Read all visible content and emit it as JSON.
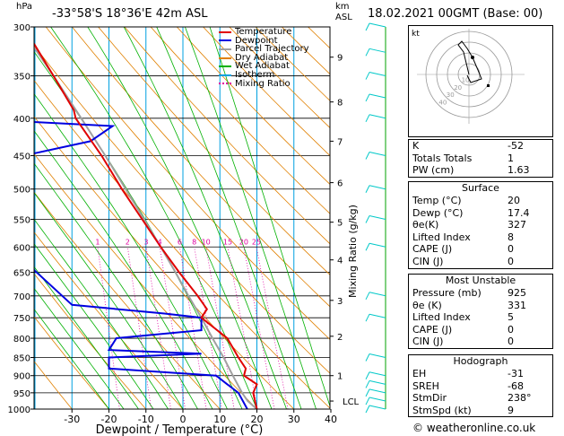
{
  "header": {
    "location": "-33°58'S  18°36'E  42m  ASL",
    "datetime": "18.02.2021  00GMT  (Base: 00)",
    "hpa_label": "hPa",
    "km_label": "km",
    "asl_label": "ASL"
  },
  "colors": {
    "temperature": "#e00000",
    "dewpoint": "#0000e0",
    "parcel": "#a0a0a0",
    "dry_adiabat": "#e08000",
    "wet_adiabat": "#00b000",
    "isotherm": "#00a0e0",
    "mixing_ratio": "#e000a0",
    "wind": "#00c8c8"
  },
  "legend": [
    {
      "label": "Temperature",
      "color": "#e00000",
      "style": "solid"
    },
    {
      "label": "Dewpoint",
      "color": "#0000e0",
      "style": "solid"
    },
    {
      "label": "Parcel Trajectory",
      "color": "#a0a0a0",
      "style": "solid"
    },
    {
      "label": "Dry Adiabat",
      "color": "#e08000",
      "style": "solid"
    },
    {
      "label": "Wet Adiabat",
      "color": "#00b000",
      "style": "solid"
    },
    {
      "label": "Isotherm",
      "color": "#00a0e0",
      "style": "solid"
    },
    {
      "label": "Mixing Ratio",
      "color": "#e000a0",
      "style": "dotted"
    }
  ],
  "chart_data": {
    "type": "skew-t",
    "xlabel": "Dewpoint / Temperature (°C)",
    "ylabel_right": "Mixing Ratio (g/kg)",
    "x_ticks": [
      -30,
      -20,
      -10,
      0,
      10,
      20,
      30,
      40
    ],
    "xlim": [
      -40,
      40
    ],
    "pressure_levels": [
      300,
      350,
      400,
      450,
      500,
      550,
      600,
      650,
      700,
      750,
      800,
      850,
      900,
      950,
      1000
    ],
    "pressure_labels": [
      "300",
      "350",
      "400",
      "450",
      "500",
      "550",
      "600",
      "650",
      "700",
      "750",
      "800",
      "850",
      "900",
      "950",
      "1000"
    ],
    "km_ticks": [
      {
        "km": "1",
        "p": 900
      },
      {
        "km": "2",
        "p": 795
      },
      {
        "km": "3",
        "p": 710
      },
      {
        "km": "4",
        "p": 625
      },
      {
        "km": "5",
        "p": 555
      },
      {
        "km": "6",
        "p": 490
      },
      {
        "km": "7",
        "p": 430
      },
      {
        "km": "8",
        "p": 380
      },
      {
        "km": "9",
        "p": 330
      },
      {
        "km": "LCL",
        "p": 975
      }
    ],
    "mixing_ratio_labels": [
      "1",
      "2",
      "3",
      "4",
      "6",
      "8",
      "10",
      "15",
      "20",
      "25"
    ],
    "mixing_ratio_values": [
      1,
      2,
      3,
      4,
      6,
      8,
      10,
      15,
      20,
      25
    ],
    "temperature": [
      {
        "p": 1000,
        "t": 20
      },
      {
        "p": 975,
        "t": 19.5
      },
      {
        "p": 950,
        "t": 19
      },
      {
        "p": 925,
        "t": 20
      },
      {
        "p": 900,
        "t": 16.5
      },
      {
        "p": 880,
        "t": 17
      },
      {
        "p": 850,
        "t": 15
      },
      {
        "p": 800,
        "t": 12
      },
      {
        "p": 750,
        "t": 5
      },
      {
        "p": 730,
        "t": 6.5
      },
      {
        "p": 700,
        "t": 4
      },
      {
        "p": 650,
        "t": -1
      },
      {
        "p": 600,
        "t": -6
      },
      {
        "p": 550,
        "t": -11
      },
      {
        "p": 500,
        "t": -16.5
      },
      {
        "p": 450,
        "t": -22
      },
      {
        "p": 400,
        "t": -29
      },
      {
        "p": 390,
        "t": -29.5
      },
      {
        "p": 350,
        "t": -35
      },
      {
        "p": 300,
        "t": -43
      }
    ],
    "dewpoint": [
      {
        "p": 1000,
        "t": 17.4
      },
      {
        "p": 950,
        "t": 15
      },
      {
        "p": 925,
        "t": 12
      },
      {
        "p": 900,
        "t": 9
      },
      {
        "p": 880,
        "t": -20
      },
      {
        "p": 850,
        "t": -20
      },
      {
        "p": 840,
        "t": 5
      },
      {
        "p": 830,
        "t": -20
      },
      {
        "p": 800,
        "t": -18
      },
      {
        "p": 780,
        "t": 5
      },
      {
        "p": 750,
        "t": 5
      },
      {
        "p": 740,
        "t": -5
      },
      {
        "p": 720,
        "t": -30
      },
      {
        "p": 600,
        "t": -47
      },
      {
        "p": 550,
        "t": -52
      },
      {
        "p": 500,
        "t": -55
      },
      {
        "p": 470,
        "t": -53
      },
      {
        "p": 450,
        "t": -43
      },
      {
        "p": 430,
        "t": -25
      },
      {
        "p": 410,
        "t": -19
      },
      {
        "p": 400,
        "t": -60
      },
      {
        "p": 350,
        "t": -68
      },
      {
        "p": 320,
        "t": -66
      },
      {
        "p": 310,
        "t": -52
      },
      {
        "p": 300,
        "t": -64
      }
    ],
    "parcel": [
      {
        "p": 1000,
        "t": 20
      },
      {
        "p": 975,
        "t": 17.5
      },
      {
        "p": 950,
        "t": 16
      },
      {
        "p": 900,
        "t": 13.5
      },
      {
        "p": 850,
        "t": 11
      },
      {
        "p": 800,
        "t": 8
      },
      {
        "p": 750,
        "t": 5
      },
      {
        "p": 700,
        "t": 1.5
      },
      {
        "p": 650,
        "t": -2
      },
      {
        "p": 600,
        "t": -6
      },
      {
        "p": 550,
        "t": -10.5
      },
      {
        "p": 500,
        "t": -15.5
      },
      {
        "p": 450,
        "t": -21
      },
      {
        "p": 400,
        "t": -27.5
      },
      {
        "p": 350,
        "t": -35
      },
      {
        "p": 300,
        "t": -44
      }
    ]
  },
  "indices": [
    {
      "label": "K",
      "value": "-52"
    },
    {
      "label": "Totals Totals",
      "value": "1"
    },
    {
      "label": "PW (cm)",
      "value": "1.63"
    }
  ],
  "surface": {
    "title": "Surface",
    "rows": [
      {
        "label": "Temp (°C)",
        "value": "20"
      },
      {
        "label": "Dewp (°C)",
        "value": "17.4"
      },
      {
        "label": "θe(K)",
        "value": "327"
      },
      {
        "label": "Lifted Index",
        "value": "8"
      },
      {
        "label": "CAPE (J)",
        "value": "0"
      },
      {
        "label": "CIN (J)",
        "value": "0"
      }
    ]
  },
  "most_unstable": {
    "title": "Most Unstable",
    "rows": [
      {
        "label": "Pressure (mb)",
        "value": "925"
      },
      {
        "label": "θe (K)",
        "value": "331"
      },
      {
        "label": "Lifted Index",
        "value": "5"
      },
      {
        "label": "CAPE (J)",
        "value": "0"
      },
      {
        "label": "CIN (J)",
        "value": "0"
      }
    ]
  },
  "hodograph_table": {
    "title": "Hodograph",
    "rows": [
      {
        "label": "EH",
        "value": "-31"
      },
      {
        "label": "SREH",
        "value": "-68"
      },
      {
        "label": "StmDir",
        "value": "238°"
      },
      {
        "label": "StmSpd (kt)",
        "value": "9"
      }
    ]
  },
  "hodograph": {
    "unit_label": "kt",
    "ring_labels": [
      "10",
      "20",
      "30",
      "40"
    ]
  },
  "footer": "© weatheronline.co.uk"
}
